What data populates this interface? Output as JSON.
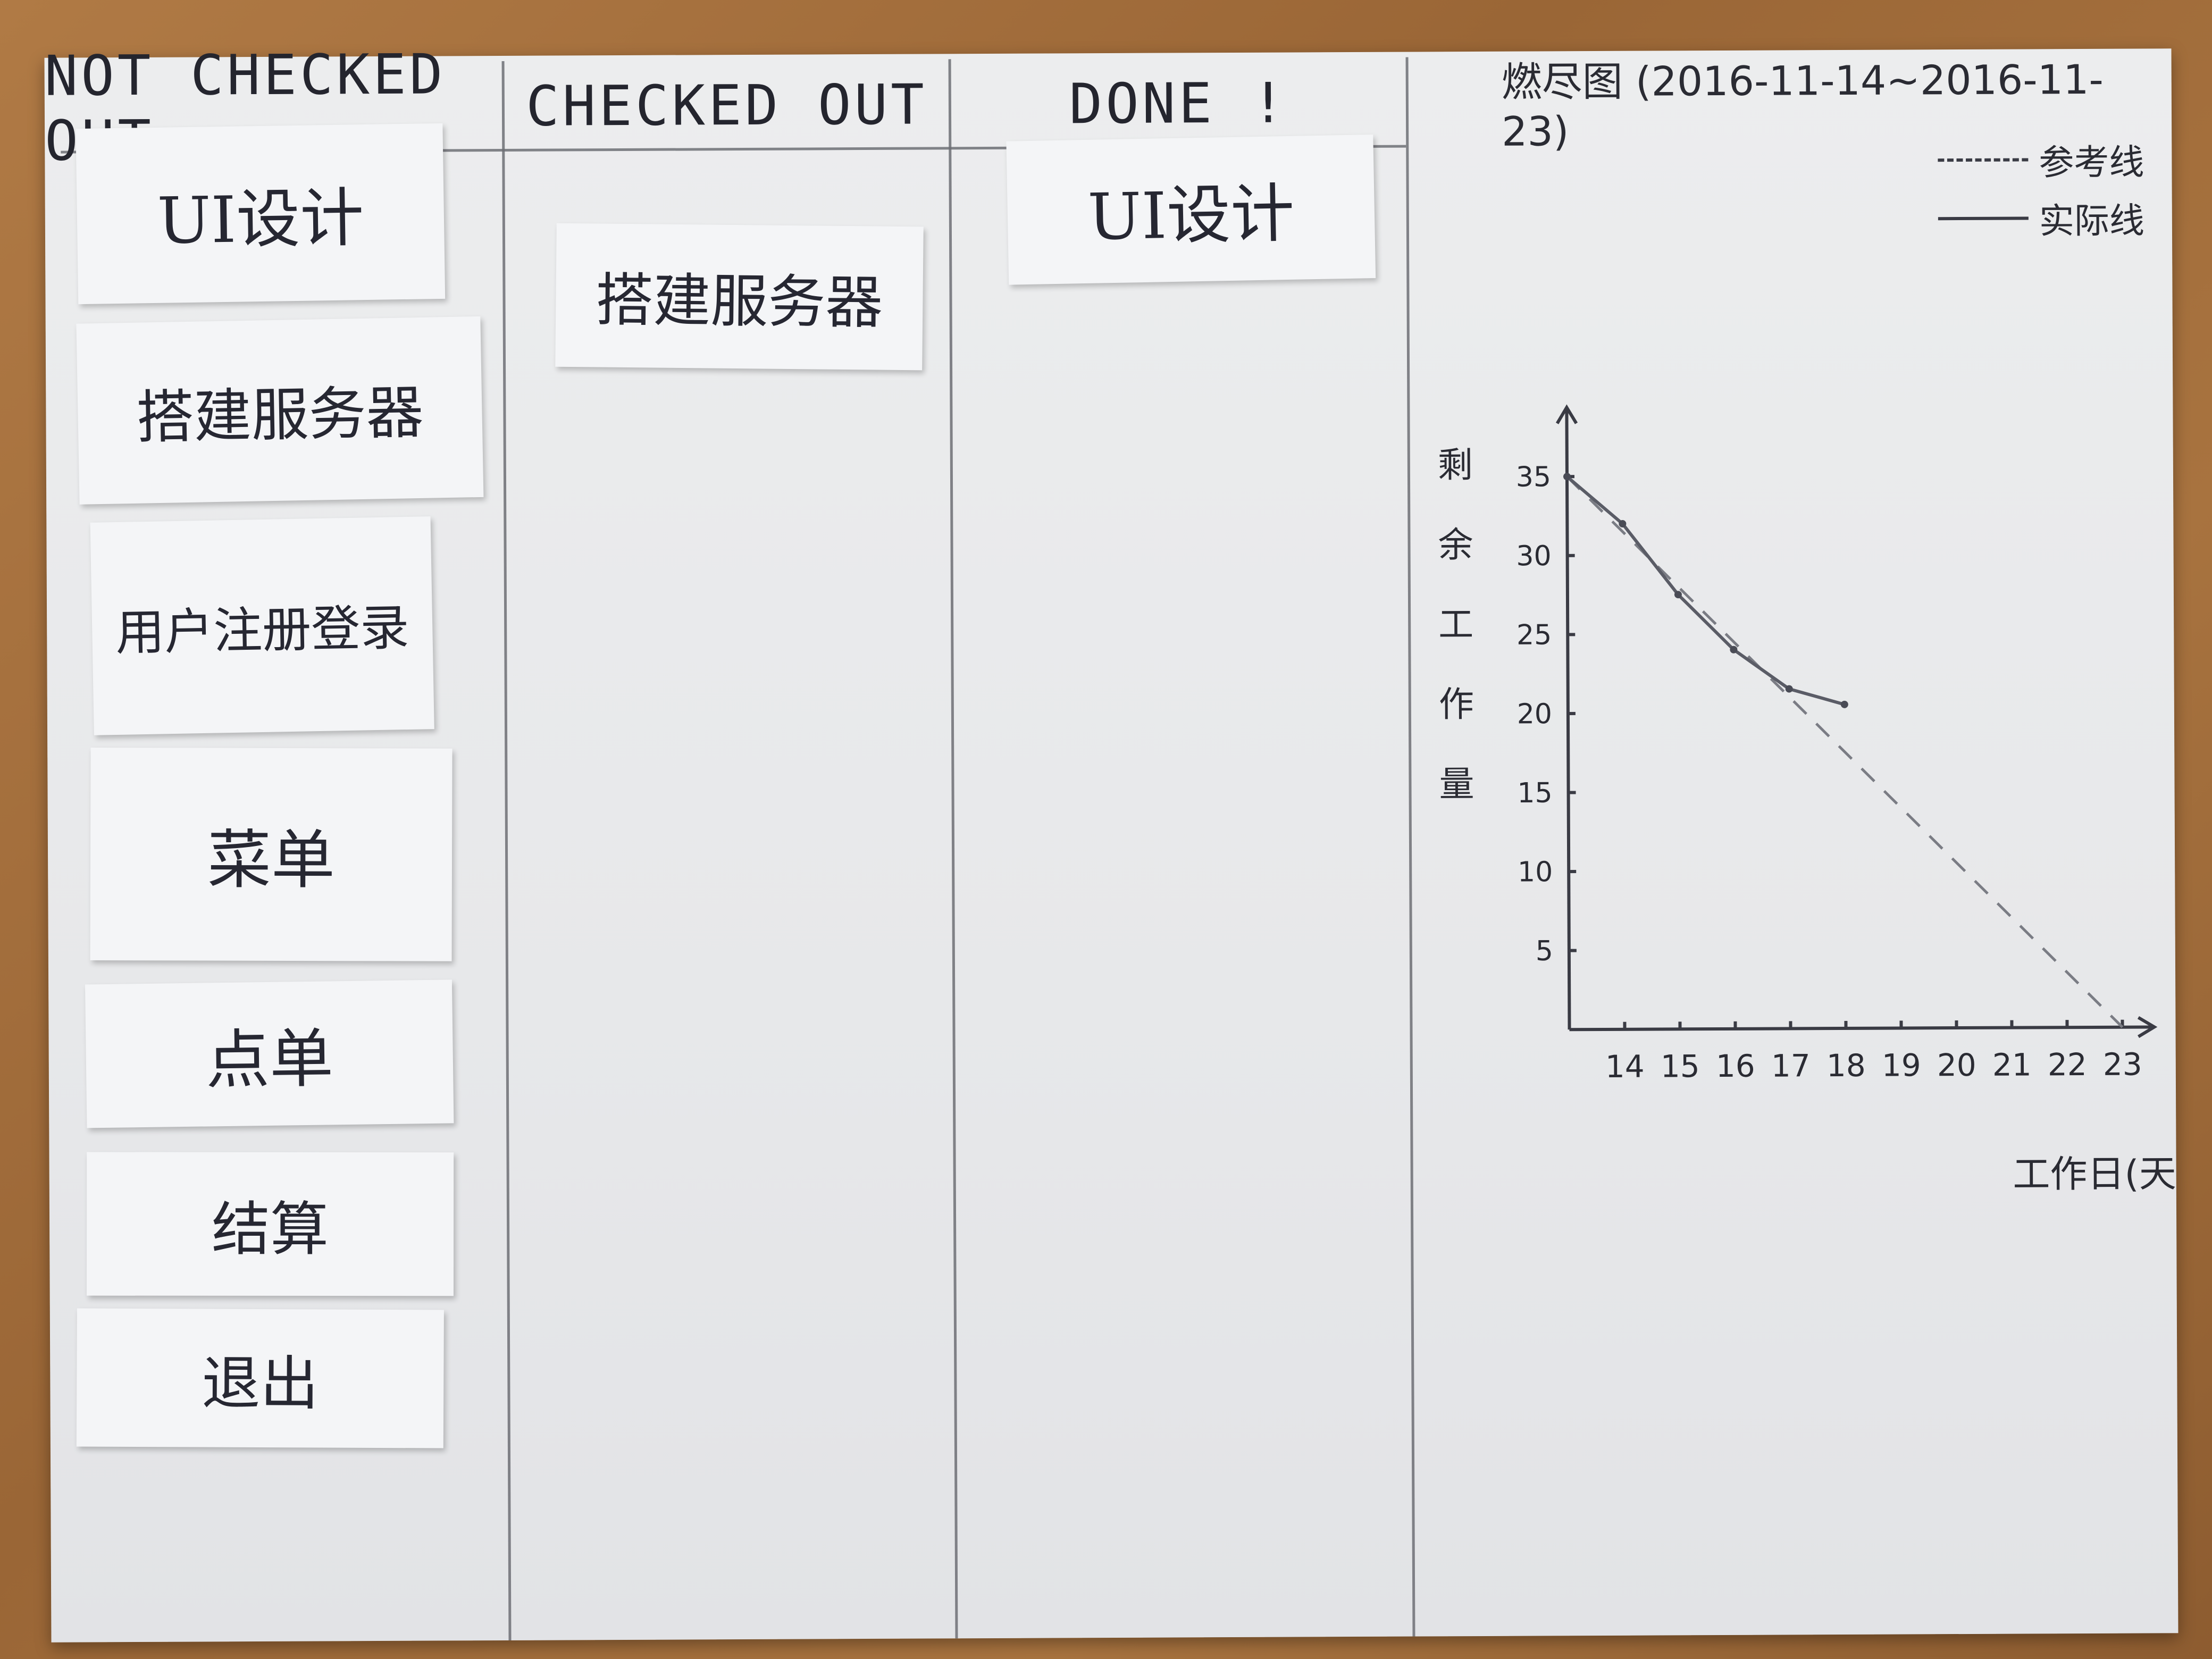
{
  "columns": {
    "not_checked_out": "NOT CHECKED OUT",
    "checked_out": "CHECKED OUT",
    "done": "DONE !"
  },
  "cards": {
    "not_checked_out": [
      "UI设计",
      "搭建服务器",
      "用户注册登录",
      "菜单",
      "点单",
      "结算",
      "退出"
    ],
    "checked_out": [
      "搭建服务器"
    ],
    "done": [
      "UI设计"
    ]
  },
  "chart_data": {
    "type": "line",
    "title": "燃尽图 (2016-11-14~2016-11-23)",
    "xlabel": "工作日(天)",
    "ylabel": "剩余工作量",
    "x": [
      14,
      15,
      16,
      17,
      18,
      19,
      20,
      21,
      22,
      23
    ],
    "y_ticks": [
      5,
      10,
      15,
      20,
      25,
      30,
      35
    ],
    "xlim": [
      13,
      23
    ],
    "ylim": [
      0,
      35
    ],
    "series": [
      {
        "name": "参考线",
        "style": "dashed",
        "x": [
          13,
          23
        ],
        "y": [
          35,
          0
        ]
      },
      {
        "name": "实际线",
        "style": "solid",
        "x": [
          13,
          14,
          15,
          16,
          17,
          18
        ],
        "y": [
          35,
          32,
          27.5,
          24,
          21.5,
          20.5
        ]
      }
    ],
    "legend_position": "top-right",
    "grid": false
  },
  "colors": {
    "ink": "#2a2b33",
    "paper": "#e8e9eb",
    "table": "#a06c3b"
  }
}
